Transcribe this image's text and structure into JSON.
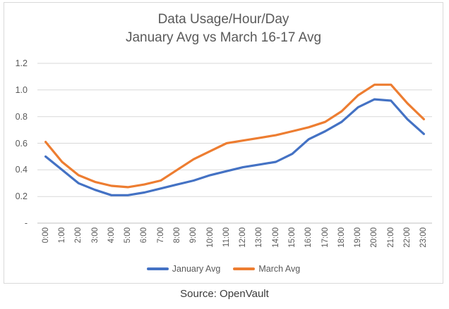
{
  "chart_data": {
    "type": "line",
    "title": "Data Usage/Hour/Day",
    "subtitle": "January Avg vs March 16-17 Avg",
    "categories": [
      "0:00",
      "1:00",
      "2:00",
      "3:00",
      "4:00",
      "5:00",
      "6:00",
      "7:00",
      "8:00",
      "9:00",
      "10:00",
      "11:00",
      "12:00",
      "13:00",
      "14:00",
      "15:00",
      "16:00",
      "17:00",
      "18:00",
      "19:00",
      "20:00",
      "21:00",
      "22:00",
      "23:00"
    ],
    "series": [
      {
        "name": "January Avg",
        "color": "#4472C4",
        "values": [
          0.5,
          0.4,
          0.3,
          0.25,
          0.21,
          0.21,
          0.23,
          0.26,
          0.29,
          0.32,
          0.36,
          0.39,
          0.42,
          0.44,
          0.46,
          0.52,
          0.63,
          0.69,
          0.76,
          0.87,
          0.93,
          0.92,
          0.78,
          0.67
        ]
      },
      {
        "name": "March Avg",
        "color": "#ED7D31",
        "values": [
          0.61,
          0.46,
          0.36,
          0.31,
          0.28,
          0.27,
          0.29,
          0.32,
          0.4,
          0.48,
          0.54,
          0.6,
          0.62,
          0.64,
          0.66,
          0.69,
          0.72,
          0.76,
          0.84,
          0.96,
          1.04,
          1.04,
          0.9,
          0.78
        ]
      }
    ],
    "ylim": [
      0,
      1.2
    ],
    "ytick_step": 0.2,
    "ytick_labels": [
      "-",
      "0.2",
      "0.4",
      "0.6",
      "0.8",
      "1.0",
      "1.2"
    ],
    "grid": true,
    "legend_position": "bottom",
    "x_label_rotation": "vertical-bottom-to-top"
  },
  "colors": {
    "grid": "#d9d9d9",
    "axis": "#bfbfbf",
    "border": "#d9d9d9",
    "title_text": "#595959",
    "tick_text": "#595959",
    "source_text": "#3b3b3b"
  },
  "footer": {
    "source_label": "Source: OpenVault"
  }
}
